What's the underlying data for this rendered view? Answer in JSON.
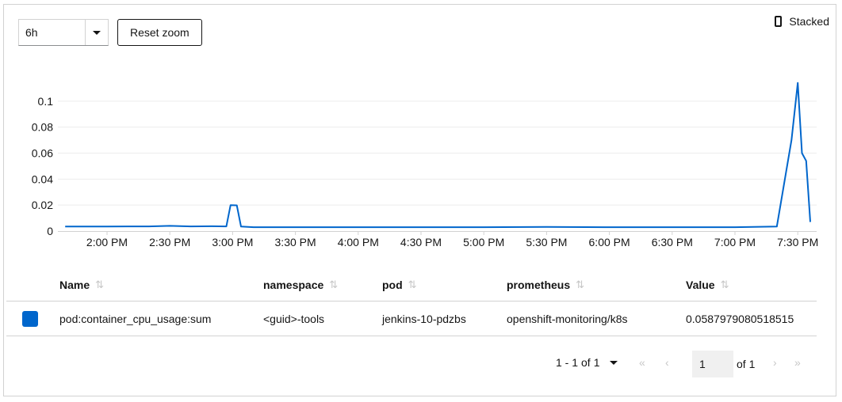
{
  "toolbar": {
    "span_value": "6h",
    "reset_label": "Reset zoom",
    "stacked_label": "Stacked"
  },
  "colors": {
    "series": "#0066cc",
    "grid": "#ededed",
    "border": "#d2d2d2"
  },
  "chart_data": {
    "type": "line",
    "x_ticks": [
      "2:00 PM",
      "2:30 PM",
      "3:00 PM",
      "3:30 PM",
      "4:00 PM",
      "4:30 PM",
      "5:00 PM",
      "5:30 PM",
      "6:00 PM",
      "6:30 PM",
      "7:00 PM",
      "7:30 PM"
    ],
    "y_ticks": [
      "0",
      "0.02",
      "0.04",
      "0.06",
      "0.08",
      "0.1"
    ],
    "ylim": [
      0,
      0.12
    ],
    "grid": true,
    "series": [
      {
        "color": "#0066cc",
        "points": [
          [
            "1:40 PM",
            0.0035
          ],
          [
            "1:50 PM",
            0.0035
          ],
          [
            "2:00 PM",
            0.0035
          ],
          [
            "2:10 PM",
            0.0036
          ],
          [
            "2:20 PM",
            0.0036
          ],
          [
            "2:30 PM",
            0.004
          ],
          [
            "2:40 PM",
            0.0036
          ],
          [
            "2:50 PM",
            0.0037
          ],
          [
            "2:57 PM",
            0.0036
          ],
          [
            "2:59 PM",
            0.02
          ],
          [
            "3:02 PM",
            0.0198
          ],
          [
            "3:04 PM",
            0.0035
          ],
          [
            "3:10 PM",
            0.003
          ],
          [
            "3:20 PM",
            0.003
          ],
          [
            "3:30 PM",
            0.003
          ],
          [
            "4:00 PM",
            0.003
          ],
          [
            "4:30 PM",
            0.003
          ],
          [
            "5:00 PM",
            0.003
          ],
          [
            "5:30 PM",
            0.0032
          ],
          [
            "6:00 PM",
            0.003
          ],
          [
            "6:30 PM",
            0.003
          ],
          [
            "7:00 PM",
            0.003
          ],
          [
            "7:20 PM",
            0.0035
          ],
          [
            "7:27 PM",
            0.07
          ],
          [
            "7:30 PM",
            0.114
          ],
          [
            "7:32 PM",
            0.06
          ],
          [
            "7:34 PM",
            0.054
          ],
          [
            "7:36 PM",
            0.007
          ]
        ]
      }
    ]
  },
  "table": {
    "headers": [
      "Name",
      "namespace",
      "pod",
      "prometheus",
      "Value"
    ],
    "sort_icon": "sort-icon",
    "rows": [
      {
        "name": "pod:container_cpu_usage:sum",
        "namespace": "<guid>-tools",
        "pod": "jenkins-10-pdzbs",
        "prometheus": "openshift-monitoring/k8s",
        "value": "0.0587979080518515"
      }
    ]
  },
  "pagination": {
    "range": "1 - 1",
    "of_label": "of",
    "total": "1",
    "page": "1",
    "page_of": "of 1"
  }
}
